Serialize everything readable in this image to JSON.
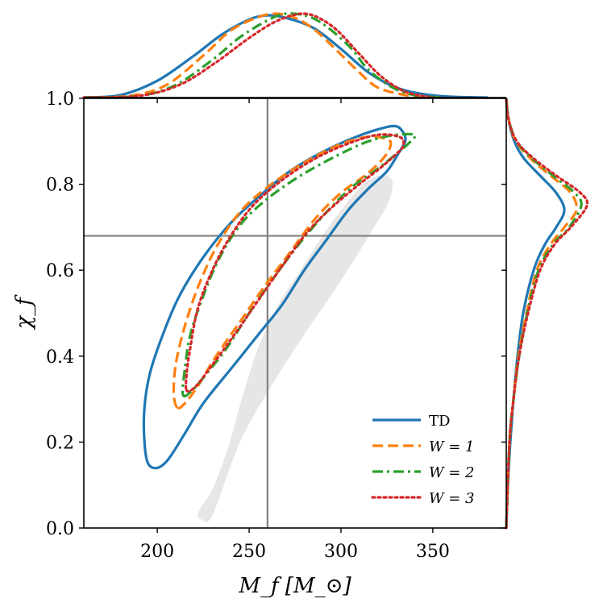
{
  "chart_data": {
    "type": "line",
    "subtype": "joint-contour-with-marginals",
    "title": "",
    "xlabel": "M_f [M_⊙]",
    "ylabel": "χ_f",
    "xlim": [
      160,
      390
    ],
    "ylim": [
      0.0,
      1.0
    ],
    "x_ticks": [
      200,
      250,
      300,
      350
    ],
    "y_ticks": [
      0.0,
      0.2,
      0.4,
      0.6,
      0.8,
      1.0
    ],
    "x_tick_labels": [
      "200",
      "250",
      "300",
      "350"
    ],
    "y_tick_labels": [
      "0.0",
      "0.2",
      "0.4",
      "0.6",
      "0.8",
      "1.0"
    ],
    "reference": {
      "x": 260,
      "y": 0.68,
      "color": "#808080"
    },
    "legend_position": "bottom-right",
    "series": [
      {
        "name": "TD",
        "color": "#1f77b4",
        "dash": "solid",
        "contour": [
          [
            200,
            0.14
          ],
          [
            206,
            0.16
          ],
          [
            215,
            0.22
          ],
          [
            225,
            0.29
          ],
          [
            240,
            0.37
          ],
          [
            255,
            0.45
          ],
          [
            268,
            0.52
          ],
          [
            280,
            0.6
          ],
          [
            292,
            0.67
          ],
          [
            304,
            0.74
          ],
          [
            315,
            0.79
          ],
          [
            325,
            0.83
          ],
          [
            331,
            0.87
          ],
          [
            335,
            0.9
          ],
          [
            334,
            0.92
          ],
          [
            330,
            0.935
          ],
          [
            322,
            0.93
          ],
          [
            308,
            0.91
          ],
          [
            290,
            0.875
          ],
          [
            272,
            0.83
          ],
          [
            255,
            0.77
          ],
          [
            240,
            0.71
          ],
          [
            225,
            0.63
          ],
          [
            212,
            0.54
          ],
          [
            203,
            0.45
          ],
          [
            196,
            0.36
          ],
          [
            193,
            0.28
          ],
          [
            193,
            0.2
          ],
          [
            195,
            0.15
          ]
        ],
        "marginal_x": [
          [
            160,
            0
          ],
          [
            180,
            0.03
          ],
          [
            200,
            0.2
          ],
          [
            220,
            0.5
          ],
          [
            235,
            0.75
          ],
          [
            250,
            0.93
          ],
          [
            260,
            0.98
          ],
          [
            270,
            0.95
          ],
          [
            285,
            0.83
          ],
          [
            300,
            0.58
          ],
          [
            315,
            0.3
          ],
          [
            330,
            0.12
          ],
          [
            345,
            0.04
          ],
          [
            360,
            0.01
          ],
          [
            380,
            0
          ]
        ],
        "marginal_y": [
          [
            0,
            0
          ],
          [
            0.1,
            0.02
          ],
          [
            0.2,
            0.05
          ],
          [
            0.3,
            0.09
          ],
          [
            0.4,
            0.14
          ],
          [
            0.5,
            0.21
          ],
          [
            0.6,
            0.34
          ],
          [
            0.66,
            0.48
          ],
          [
            0.7,
            0.62
          ],
          [
            0.74,
            0.72
          ],
          [
            0.78,
            0.62
          ],
          [
            0.82,
            0.42
          ],
          [
            0.86,
            0.22
          ],
          [
            0.9,
            0.1
          ],
          [
            0.95,
            0.03
          ],
          [
            1.0,
            0
          ]
        ]
      },
      {
        "name": "W = 1",
        "color": "#ff7f0e",
        "dash": "dashed",
        "contour": [
          [
            211,
            0.28
          ],
          [
            215,
            0.29
          ],
          [
            222,
            0.33
          ],
          [
            232,
            0.4
          ],
          [
            245,
            0.48
          ],
          [
            258,
            0.56
          ],
          [
            272,
            0.64
          ],
          [
            286,
            0.72
          ],
          [
            300,
            0.78
          ],
          [
            313,
            0.82
          ],
          [
            323,
            0.86
          ],
          [
            327,
            0.89
          ],
          [
            325,
            0.905
          ],
          [
            314,
            0.91
          ],
          [
            298,
            0.89
          ],
          [
            280,
            0.85
          ],
          [
            262,
            0.8
          ],
          [
            246,
            0.74
          ],
          [
            233,
            0.66
          ],
          [
            223,
            0.57
          ],
          [
            215,
            0.47
          ],
          [
            210,
            0.38
          ],
          [
            209,
            0.31
          ]
        ],
        "marginal_x": [
          [
            160,
            0
          ],
          [
            185,
            0.02
          ],
          [
            205,
            0.15
          ],
          [
            225,
            0.5
          ],
          [
            240,
            0.8
          ],
          [
            255,
            0.96
          ],
          [
            265,
            1.0
          ],
          [
            275,
            0.95
          ],
          [
            285,
            0.82
          ],
          [
            295,
            0.62
          ],
          [
            310,
            0.3
          ],
          [
            320,
            0.12
          ],
          [
            335,
            0.03
          ],
          [
            350,
            0
          ]
        ],
        "marginal_y": [
          [
            0,
            0
          ],
          [
            0.2,
            0.04
          ],
          [
            0.3,
            0.09
          ],
          [
            0.4,
            0.15
          ],
          [
            0.5,
            0.25
          ],
          [
            0.6,
            0.38
          ],
          [
            0.66,
            0.55
          ],
          [
            0.7,
            0.72
          ],
          [
            0.74,
            0.87
          ],
          [
            0.78,
            0.8
          ],
          [
            0.82,
            0.55
          ],
          [
            0.86,
            0.3
          ],
          [
            0.9,
            0.12
          ],
          [
            0.95,
            0.03
          ],
          [
            1.0,
            0
          ]
        ]
      },
      {
        "name": "W = 2",
        "color": "#2ca02c",
        "dash": "dashdot",
        "contour": [
          [
            214,
            0.31
          ],
          [
            219,
            0.32
          ],
          [
            227,
            0.36
          ],
          [
            238,
            0.42
          ],
          [
            250,
            0.5
          ],
          [
            263,
            0.58
          ],
          [
            277,
            0.66
          ],
          [
            291,
            0.73
          ],
          [
            305,
            0.79
          ],
          [
            318,
            0.83
          ],
          [
            330,
            0.87
          ],
          [
            338,
            0.9
          ],
          [
            340,
            0.915
          ],
          [
            330,
            0.915
          ],
          [
            315,
            0.9
          ],
          [
            297,
            0.865
          ],
          [
            278,
            0.82
          ],
          [
            261,
            0.77
          ],
          [
            246,
            0.71
          ],
          [
            234,
            0.63
          ],
          [
            225,
            0.54
          ],
          [
            218,
            0.45
          ],
          [
            215,
            0.37
          ]
        ],
        "marginal_x": [
          [
            160,
            0
          ],
          [
            190,
            0.02
          ],
          [
            210,
            0.15
          ],
          [
            230,
            0.45
          ],
          [
            245,
            0.72
          ],
          [
            260,
            0.92
          ],
          [
            270,
            1.0
          ],
          [
            282,
            0.97
          ],
          [
            292,
            0.85
          ],
          [
            305,
            0.6
          ],
          [
            315,
            0.33
          ],
          [
            328,
            0.12
          ],
          [
            340,
            0.03
          ],
          [
            355,
            0
          ]
        ],
        "marginal_y": [
          [
            0,
            0
          ],
          [
            0.2,
            0.04
          ],
          [
            0.3,
            0.09
          ],
          [
            0.4,
            0.16
          ],
          [
            0.5,
            0.26
          ],
          [
            0.6,
            0.4
          ],
          [
            0.66,
            0.58
          ],
          [
            0.7,
            0.78
          ],
          [
            0.75,
            0.93
          ],
          [
            0.78,
            0.85
          ],
          [
            0.82,
            0.58
          ],
          [
            0.86,
            0.32
          ],
          [
            0.9,
            0.13
          ],
          [
            0.95,
            0.03
          ],
          [
            1.0,
            0
          ]
        ]
      },
      {
        "name": "W = 3",
        "color": "#d62728",
        "dash": "dotted",
        "contour": [
          [
            216,
            0.32
          ],
          [
            221,
            0.33
          ],
          [
            230,
            0.38
          ],
          [
            242,
            0.45
          ],
          [
            255,
            0.53
          ],
          [
            268,
            0.61
          ],
          [
            282,
            0.69
          ],
          [
            296,
            0.75
          ],
          [
            310,
            0.8
          ],
          [
            322,
            0.84
          ],
          [
            330,
            0.87
          ],
          [
            334,
            0.89
          ],
          [
            332,
            0.91
          ],
          [
            320,
            0.915
          ],
          [
            304,
            0.895
          ],
          [
            286,
            0.86
          ],
          [
            268,
            0.81
          ],
          [
            252,
            0.75
          ],
          [
            240,
            0.68
          ],
          [
            230,
            0.6
          ],
          [
            222,
            0.51
          ],
          [
            218,
            0.42
          ],
          [
            216,
            0.36
          ]
        ],
        "marginal_x": [
          [
            160,
            0
          ],
          [
            190,
            0.02
          ],
          [
            212,
            0.15
          ],
          [
            232,
            0.42
          ],
          [
            248,
            0.68
          ],
          [
            262,
            0.88
          ],
          [
            272,
            0.97
          ],
          [
            280,
            1.0
          ],
          [
            288,
            0.95
          ],
          [
            298,
            0.8
          ],
          [
            310,
            0.52
          ],
          [
            322,
            0.25
          ],
          [
            335,
            0.07
          ],
          [
            350,
            0
          ]
        ],
        "marginal_y": [
          [
            0,
            0
          ],
          [
            0.2,
            0.04
          ],
          [
            0.3,
            0.09
          ],
          [
            0.4,
            0.16
          ],
          [
            0.5,
            0.27
          ],
          [
            0.6,
            0.42
          ],
          [
            0.66,
            0.6
          ],
          [
            0.7,
            0.8
          ],
          [
            0.75,
            1.0
          ],
          [
            0.78,
            0.92
          ],
          [
            0.82,
            0.62
          ],
          [
            0.86,
            0.34
          ],
          [
            0.9,
            0.13
          ],
          [
            0.95,
            0.03
          ],
          [
            1.0,
            0
          ]
        ]
      }
    ],
    "shaded_region": {
      "color": "#e6e6e6",
      "points": [
        [
          222,
          0.03
        ],
        [
          224,
          0.02
        ],
        [
          230,
          0.03
        ],
        [
          245,
          0.2
        ],
        [
          262,
          0.33
        ],
        [
          280,
          0.45
        ],
        [
          296,
          0.55
        ],
        [
          308,
          0.63
        ],
        [
          318,
          0.7
        ],
        [
          325,
          0.75
        ],
        [
          328,
          0.79
        ],
        [
          327,
          0.815
        ],
        [
          320,
          0.82
        ],
        [
          312,
          0.8
        ],
        [
          302,
          0.75
        ],
        [
          290,
          0.68
        ],
        [
          278,
          0.6
        ],
        [
          266,
          0.52
        ],
        [
          255,
          0.42
        ],
        [
          246,
          0.3
        ],
        [
          238,
          0.18
        ],
        [
          230,
          0.09
        ],
        [
          224,
          0.05
        ]
      ]
    }
  }
}
